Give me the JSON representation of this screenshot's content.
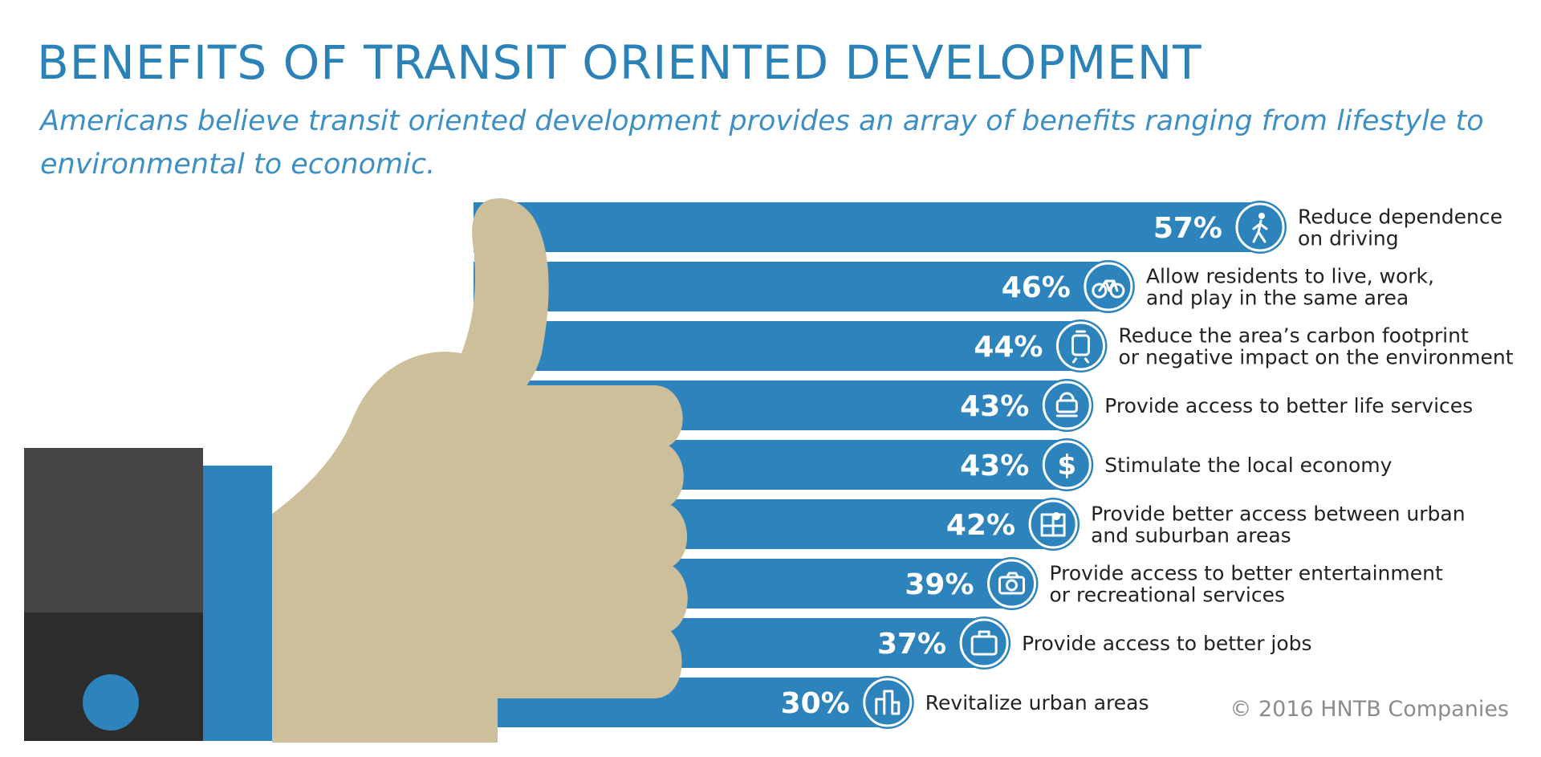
{
  "title": "BENEFITS OF TRANSIT ORIENTED DEVELOPMENT",
  "subtitle": "Americans believe transit oriented development provides an array of benefits ranging from lifestyle to environmental to economic.",
  "copyright": "© 2016 HNTB Companies",
  "colors": {
    "bar": "#2d83bb",
    "title": "#2a82b9",
    "hand": "#cdbf9a",
    "sleeve_dark": "#454545",
    "sleeve_darker": "#2c2c2c",
    "cuff": "#2d83bb",
    "label": "#222222",
    "copyright": "#8c8c8c"
  },
  "chart_data": {
    "type": "bar",
    "orientation": "horizontal",
    "title": "BENEFITS OF TRANSIT ORIENTED DEVELOPMENT",
    "subtitle": "Americans believe transit oriented development provides an array of benefits ranging from lifestyle to environmental to economic.",
    "categories": [
      "Reduce dependence on driving",
      "Allow residents to live, work, and play in the same area",
      "Reduce the area’s carbon footprint or negative impact on the environment",
      "Provide access to better life services",
      "Stimulate the local economy",
      "Provide better access between urban and suburban areas",
      "Provide access to better entertainment or recreational services",
      "Provide access to better jobs",
      "Revitalize urban areas"
    ],
    "label_lines": [
      [
        "Reduce dependence",
        "on driving"
      ],
      [
        "Allow residents to live, work,",
        "and play in the same area"
      ],
      [
        "Reduce the area’s carbon footprint",
        "or negative impact on the environment"
      ],
      [
        "Provide access to better life services"
      ],
      [
        "Stimulate the local economy"
      ],
      [
        "Provide better access between urban",
        "and suburban areas"
      ],
      [
        "Provide access to better entertainment",
        "or recreational services"
      ],
      [
        "Provide access to better jobs"
      ],
      [
        "Revitalize urban areas"
      ]
    ],
    "values": [
      57,
      46,
      44,
      43,
      43,
      42,
      39,
      37,
      30
    ],
    "value_labels": [
      "57%",
      "46%",
      "44%",
      "43%",
      "43%",
      "42%",
      "39%",
      "37%",
      "30%"
    ],
    "icons": [
      "pedestrian-icon",
      "bicycle-icon",
      "tram-icon",
      "stroller-icon",
      "dollar-icon",
      "map-pin-icon",
      "camera-icon",
      "briefcase-icon",
      "city-icon"
    ],
    "unit": "%",
    "xlabel": "",
    "ylabel": ""
  }
}
